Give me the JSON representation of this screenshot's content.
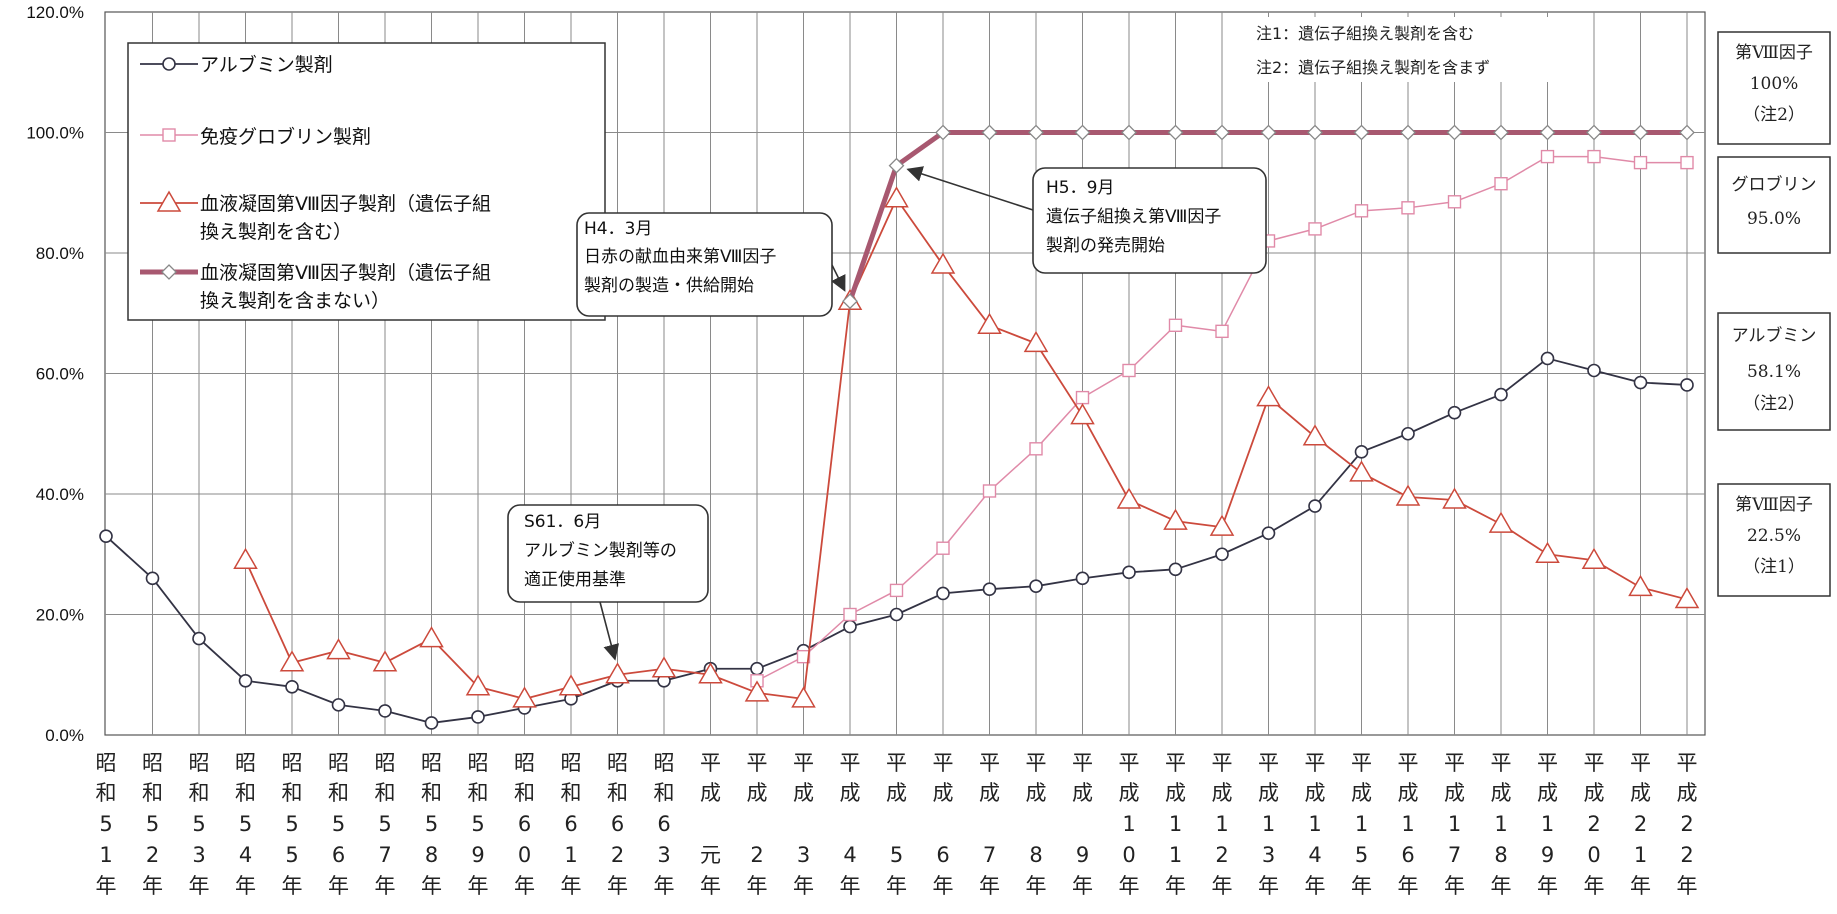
{
  "chart_data": {
    "type": "line",
    "ylim": [
      0,
      120
    ],
    "y_ticks": [
      "0.0%",
      "20.0%",
      "40.0%",
      "60.0%",
      "80.0%",
      "100.0%",
      "120.0%"
    ],
    "grid": true,
    "legend_position": "top-left",
    "categories": [
      "昭和51年",
      "昭和52年",
      "昭和53年",
      "昭和54年",
      "昭和55年",
      "昭和56年",
      "昭和57年",
      "昭和58年",
      "昭和59年",
      "昭和60年",
      "昭和61年",
      "昭和62年",
      "昭和63年",
      "平成元年",
      "平成2年",
      "平成3年",
      "平成4年",
      "平成5年",
      "平成6年",
      "平成7年",
      "平成8年",
      "平成9年",
      "平成10年",
      "平成11年",
      "平成12年",
      "平成13年",
      "平成14年",
      "平成15年",
      "平成16年",
      "平成17年",
      "平成18年",
      "平成19年",
      "平成20年",
      "平成21年",
      "平成22年"
    ],
    "category_labels": [
      [
        "昭",
        "和",
        "5",
        "1",
        "年"
      ],
      [
        "昭",
        "和",
        "5",
        "2",
        "年"
      ],
      [
        "昭",
        "和",
        "5",
        "3",
        "年"
      ],
      [
        "昭",
        "和",
        "5",
        "4",
        "年"
      ],
      [
        "昭",
        "和",
        "5",
        "5",
        "年"
      ],
      [
        "昭",
        "和",
        "5",
        "6",
        "年"
      ],
      [
        "昭",
        "和",
        "5",
        "7",
        "年"
      ],
      [
        "昭",
        "和",
        "5",
        "8",
        "年"
      ],
      [
        "昭",
        "和",
        "5",
        "9",
        "年"
      ],
      [
        "昭",
        "和",
        "6",
        "0",
        "年"
      ],
      [
        "昭",
        "和",
        "6",
        "1",
        "年"
      ],
      [
        "昭",
        "和",
        "6",
        "2",
        "年"
      ],
      [
        "昭",
        "和",
        "6",
        "3",
        "年"
      ],
      [
        "平",
        "成",
        "",
        "元",
        "年"
      ],
      [
        "平",
        "成",
        "",
        "2",
        "年"
      ],
      [
        "平",
        "成",
        "",
        "3",
        "年"
      ],
      [
        "平",
        "成",
        "",
        "4",
        "年"
      ],
      [
        "平",
        "成",
        "",
        "5",
        "年"
      ],
      [
        "平",
        "成",
        "",
        "6",
        "年"
      ],
      [
        "平",
        "成",
        "",
        "7",
        "年"
      ],
      [
        "平",
        "成",
        "",
        "8",
        "年"
      ],
      [
        "平",
        "成",
        "",
        "9",
        "年"
      ],
      [
        "平",
        "成",
        "1",
        "0",
        "年"
      ],
      [
        "平",
        "成",
        "1",
        "1",
        "年"
      ],
      [
        "平",
        "成",
        "1",
        "2",
        "年"
      ],
      [
        "平",
        "成",
        "1",
        "3",
        "年"
      ],
      [
        "平",
        "成",
        "1",
        "4",
        "年"
      ],
      [
        "平",
        "成",
        "1",
        "5",
        "年"
      ],
      [
        "平",
        "成",
        "1",
        "6",
        "年"
      ],
      [
        "平",
        "成",
        "1",
        "7",
        "年"
      ],
      [
        "平",
        "成",
        "1",
        "8",
        "年"
      ],
      [
        "平",
        "成",
        "1",
        "9",
        "年"
      ],
      [
        "平",
        "成",
        "2",
        "0",
        "年"
      ],
      [
        "平",
        "成",
        "2",
        "1",
        "年"
      ],
      [
        "平",
        "成",
        "2",
        "2",
        "年"
      ]
    ],
    "series": [
      {
        "name": "アルブミン製剤",
        "marker": "circle",
        "color": "#333344",
        "values": [
          33,
          26,
          16,
          9,
          8,
          5,
          4,
          2,
          3,
          4.5,
          6,
          9,
          9,
          11,
          11,
          14,
          18,
          20,
          23.5,
          24.2,
          24.7,
          26,
          27,
          27.5,
          30,
          33.5,
          38,
          47,
          50,
          53.5,
          56.5,
          62.5,
          60.5,
          58.5,
          58.1
        ]
      },
      {
        "name": "免疫グロブリン製剤",
        "marker": "square",
        "color": "#e08aa8",
        "values": [
          null,
          null,
          null,
          null,
          null,
          null,
          null,
          null,
          null,
          null,
          null,
          null,
          null,
          null,
          9,
          13,
          20,
          24,
          31,
          40.5,
          47.5,
          56,
          60.5,
          68,
          67,
          82,
          84,
          87,
          87.5,
          88.5,
          91.5,
          96,
          96,
          95,
          95
        ]
      },
      {
        "name": "血液凝固第Ⅷ因子製剤（遺伝子組換え製剤を含む）",
        "marker": "triangle",
        "color": "#cc4a3c",
        "values": [
          null,
          null,
          null,
          29,
          12,
          14,
          12,
          16,
          8,
          6,
          8,
          10,
          11,
          10,
          7,
          6,
          72,
          89,
          78,
          68,
          65,
          53,
          39,
          35.5,
          34.5,
          56,
          49.5,
          43.5,
          39.5,
          39,
          35,
          30,
          29,
          24.5,
          22.5
        ]
      },
      {
        "name": "血液凝固第Ⅷ因子製剤（遺伝子組換え製剤を含まない）",
        "marker": "diamond",
        "color": "#a85870",
        "values": [
          null,
          null,
          null,
          null,
          null,
          null,
          null,
          null,
          null,
          null,
          null,
          null,
          null,
          null,
          null,
          null,
          72,
          94.5,
          100,
          100,
          100,
          100,
          100,
          100,
          100,
          100,
          100,
          100,
          100,
          100,
          100,
          100,
          100,
          100,
          100
        ]
      }
    ],
    "legend": {
      "entries": [
        [
          "アルブミン製剤"
        ],
        [
          "免疫グロブリン製剤"
        ],
        [
          "血液凝固第Ⅷ因子製剤（遺伝子組",
          "換え製剤を含む）"
        ],
        [
          "血液凝固第Ⅷ因子製剤（遺伝子組",
          "換え製剤を含まない）"
        ]
      ]
    },
    "notes": [
      "注1：遺伝子組換え製剤を含む",
      "注2：遺伝子組換え製剤を含まず"
    ],
    "annotations": [
      {
        "lines": [
          "S61．6月",
          "アルブミン製剤等の",
          "適正使用基準"
        ],
        "target_category": 11,
        "target_value": 11
      },
      {
        "lines": [
          "H4．3月",
          "日赤の献血由来第Ⅷ因子",
          "製剤の製造・供給開始"
        ],
        "target_category": 16,
        "target_value": 72
      },
      {
        "lines": [
          "H5．9月",
          "遺伝子組換え第Ⅷ因子",
          "製剤の発売開始"
        ],
        "target_category": 17,
        "target_value": 94.5
      }
    ],
    "side_labels": [
      {
        "lines": [
          "第Ⅷ因子",
          "100%",
          "（注2）"
        ]
      },
      {
        "lines": [
          "グロブリン",
          "95.0%"
        ]
      },
      {
        "lines": [
          "アルブミン",
          "58.1%",
          "（注2）"
        ]
      },
      {
        "lines": [
          "第Ⅷ因子",
          "22.5%",
          "（注1）"
        ]
      }
    ]
  }
}
